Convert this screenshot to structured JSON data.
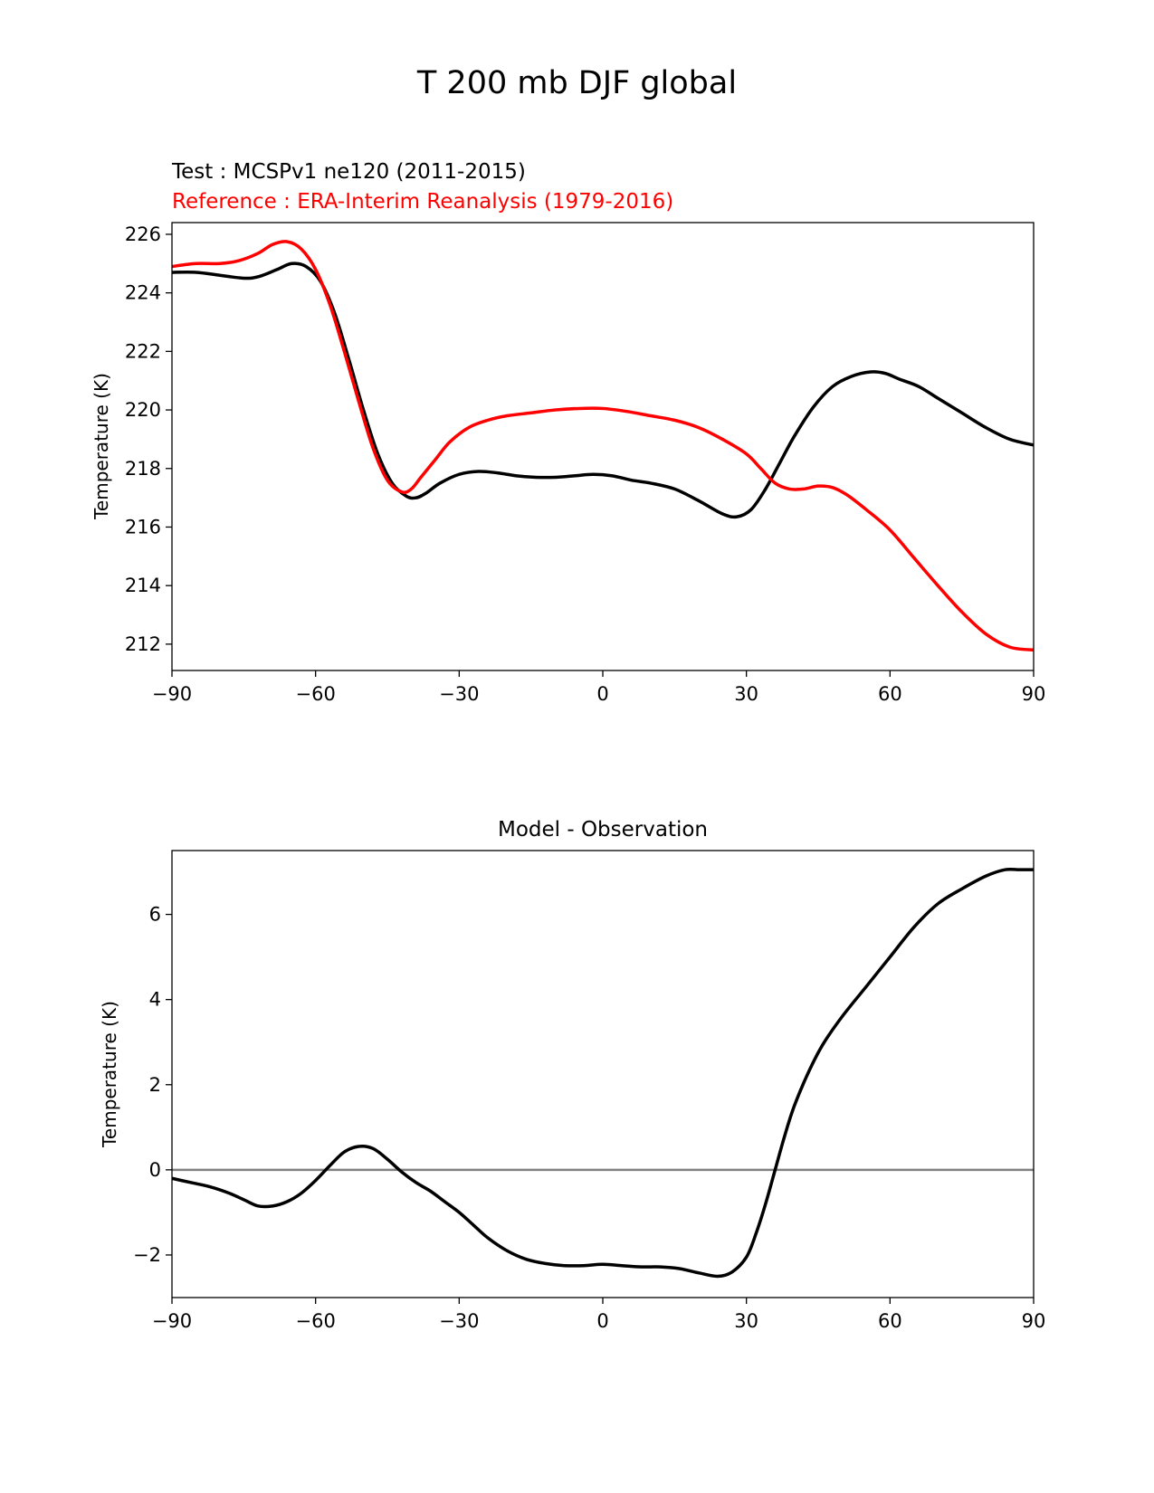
{
  "figure": {
    "title": "T 200 mb DJF global"
  },
  "chart_data": [
    {
      "type": "line",
      "test_label": "Test : MCSPv1 ne120 (2011-2015)",
      "reference_label": "Reference : ERA-Interim Reanalysis (1979-2016)",
      "ylabel": "Temperature (K)",
      "xlim": [
        -90,
        90
      ],
      "ylim": [
        211.1,
        226.4
      ],
      "xticks": [
        -90,
        -60,
        -30,
        0,
        30,
        60,
        90
      ],
      "xtick_labels": [
        "−90",
        "−60",
        "−30",
        "0",
        "30",
        "60",
        "90"
      ],
      "yticks": [
        212,
        214,
        216,
        218,
        220,
        222,
        224,
        226
      ],
      "ytick_labels": [
        "212",
        "214",
        "216",
        "218",
        "220",
        "222",
        "224",
        "226"
      ],
      "grid": false,
      "series": [
        {
          "role": "test",
          "color": "#000000",
          "x": [
            -90,
            -85,
            -80,
            -75,
            -72,
            -68,
            -65,
            -62,
            -59,
            -56,
            -53,
            -50,
            -47,
            -44,
            -41,
            -39,
            -37,
            -34,
            -30,
            -26,
            -22,
            -18,
            -14,
            -10,
            -6,
            -2,
            2,
            6,
            10,
            15,
            20,
            25,
            28,
            31,
            34,
            37,
            40,
            44,
            48,
            52,
            56,
            59,
            62,
            66,
            70,
            75,
            80,
            85,
            90
          ],
          "y": [
            224.7,
            224.7,
            224.6,
            224.5,
            224.55,
            224.8,
            225.0,
            224.9,
            224.4,
            223.3,
            221.7,
            220.0,
            218.5,
            217.5,
            217.05,
            217.0,
            217.15,
            217.5,
            217.8,
            217.9,
            217.85,
            217.75,
            217.7,
            217.7,
            217.75,
            217.8,
            217.75,
            217.6,
            217.5,
            217.3,
            216.9,
            216.45,
            216.35,
            216.6,
            217.3,
            218.2,
            219.1,
            220.1,
            220.8,
            221.15,
            221.3,
            221.25,
            221.05,
            220.8,
            220.4,
            219.9,
            219.4,
            219.0,
            218.8
          ]
        },
        {
          "role": "reference",
          "color": "#ff0000",
          "x": [
            -90,
            -85,
            -80,
            -76,
            -72,
            -69,
            -66,
            -63,
            -60,
            -57,
            -54,
            -51,
            -48,
            -45,
            -42,
            -40,
            -38,
            -35,
            -32,
            -28,
            -24,
            -20,
            -15,
            -10,
            -5,
            0,
            5,
            10,
            15,
            20,
            25,
            30,
            33,
            36,
            39,
            42,
            45,
            48,
            51,
            55,
            60,
            65,
            70,
            75,
            80,
            85,
            90
          ],
          "y": [
            224.9,
            225.0,
            225.0,
            225.1,
            225.35,
            225.65,
            225.75,
            225.5,
            224.8,
            223.6,
            222.0,
            220.3,
            218.7,
            217.6,
            217.2,
            217.3,
            217.7,
            218.3,
            218.9,
            219.4,
            219.65,
            219.8,
            219.9,
            220.0,
            220.05,
            220.05,
            219.95,
            219.8,
            219.65,
            219.4,
            219.0,
            218.5,
            218.0,
            217.5,
            217.3,
            217.3,
            217.4,
            217.35,
            217.1,
            216.6,
            215.9,
            214.95,
            214.0,
            213.1,
            212.35,
            211.9,
            211.8
          ]
        }
      ]
    },
    {
      "type": "line",
      "title": "Model - Observation",
      "ylabel": "Temperature (K)",
      "xlim": [
        -90,
        90
      ],
      "ylim": [
        -3.0,
        7.5
      ],
      "xticks": [
        -90,
        -60,
        -30,
        0,
        30,
        60,
        90
      ],
      "xtick_labels": [
        "−90",
        "−60",
        "−30",
        "0",
        "30",
        "60",
        "90"
      ],
      "yticks": [
        -2,
        0,
        2,
        4,
        6
      ],
      "ytick_labels": [
        "−2",
        "0",
        "2",
        "4",
        "6"
      ],
      "grid": false,
      "zero_line_color": "#808080",
      "series": [
        {
          "role": "difference",
          "color": "#000000",
          "x": [
            -90,
            -86,
            -82,
            -78,
            -75,
            -72,
            -69,
            -66,
            -63,
            -60,
            -57,
            -54,
            -51,
            -48,
            -45,
            -42,
            -39,
            -36,
            -33,
            -30,
            -27,
            -24,
            -20,
            -16,
            -12,
            -8,
            -4,
            0,
            4,
            8,
            12,
            16,
            20,
            24,
            27,
            30,
            32,
            34,
            36,
            38,
            40,
            43,
            46,
            50,
            55,
            60,
            65,
            70,
            75,
            80,
            84,
            87,
            90
          ],
          "y": [
            -0.2,
            -0.3,
            -0.4,
            -0.55,
            -0.7,
            -0.85,
            -0.85,
            -0.75,
            -0.55,
            -0.25,
            0.1,
            0.42,
            0.55,
            0.5,
            0.25,
            -0.05,
            -0.3,
            -0.5,
            -0.75,
            -1.0,
            -1.3,
            -1.6,
            -1.9,
            -2.1,
            -2.2,
            -2.25,
            -2.25,
            -2.22,
            -2.25,
            -2.28,
            -2.28,
            -2.32,
            -2.42,
            -2.5,
            -2.4,
            -2.05,
            -1.5,
            -0.8,
            0.0,
            0.8,
            1.5,
            2.3,
            2.95,
            3.6,
            4.3,
            5.0,
            5.7,
            6.25,
            6.6,
            6.9,
            7.05,
            7.05,
            7.05
          ]
        }
      ]
    }
  ]
}
